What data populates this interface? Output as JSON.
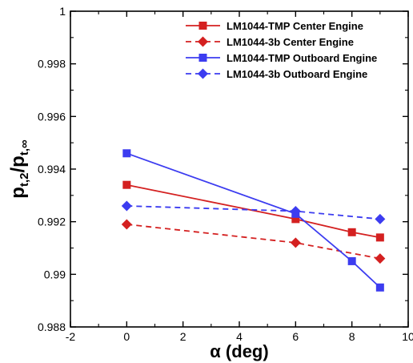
{
  "chart_data": {
    "type": "line",
    "title": "",
    "xlabel": {
      "symbol": "α",
      "text": " (deg)"
    },
    "ylabel": {
      "p1": "p",
      "s1": "t,2",
      "slash": "/",
      "p2": "p",
      "s2": "t,∞"
    },
    "xlim": [
      -2,
      10
    ],
    "ylim": [
      0.988,
      1.0
    ],
    "xticks": [
      -2,
      0,
      2,
      4,
      6,
      8,
      10
    ],
    "xtick_labels": [
      "-2",
      "0",
      "2",
      "4",
      "6",
      "8",
      "10"
    ],
    "yticks": [
      0.988,
      0.99,
      0.992,
      0.994,
      0.996,
      0.998,
      1.0
    ],
    "ytick_labels": [
      "0.988",
      "0.99",
      "0.992",
      "0.994",
      "0.996",
      "0.998",
      "1"
    ],
    "grid": false,
    "legend_position": "top-right",
    "series": [
      {
        "name": "LM1044-TMP Center Engine",
        "color": "#d42020",
        "dash": "solid",
        "marker": "square",
        "x": [
          0,
          6,
          8,
          9
        ],
        "y": [
          0.9934,
          0.9921,
          0.9916,
          0.9914
        ]
      },
      {
        "name": "LM1044-3b Center Engine",
        "color": "#d42020",
        "dash": "dashed",
        "marker": "diamond",
        "x": [
          0,
          6,
          9
        ],
        "y": [
          0.9919,
          0.9912,
          0.9906
        ]
      },
      {
        "name": "LM1044-TMP Outboard Engine",
        "color": "#3c3cf0",
        "dash": "solid",
        "marker": "square",
        "x": [
          0,
          6,
          8,
          9
        ],
        "y": [
          0.9946,
          0.9923,
          0.9905,
          0.9895
        ]
      },
      {
        "name": "LM1044-3b Outboard Engine",
        "color": "#3c3cf0",
        "dash": "dashed",
        "marker": "diamond",
        "x": [
          0,
          6,
          9
        ],
        "y": [
          0.9926,
          0.9924,
          0.9921
        ]
      }
    ]
  }
}
